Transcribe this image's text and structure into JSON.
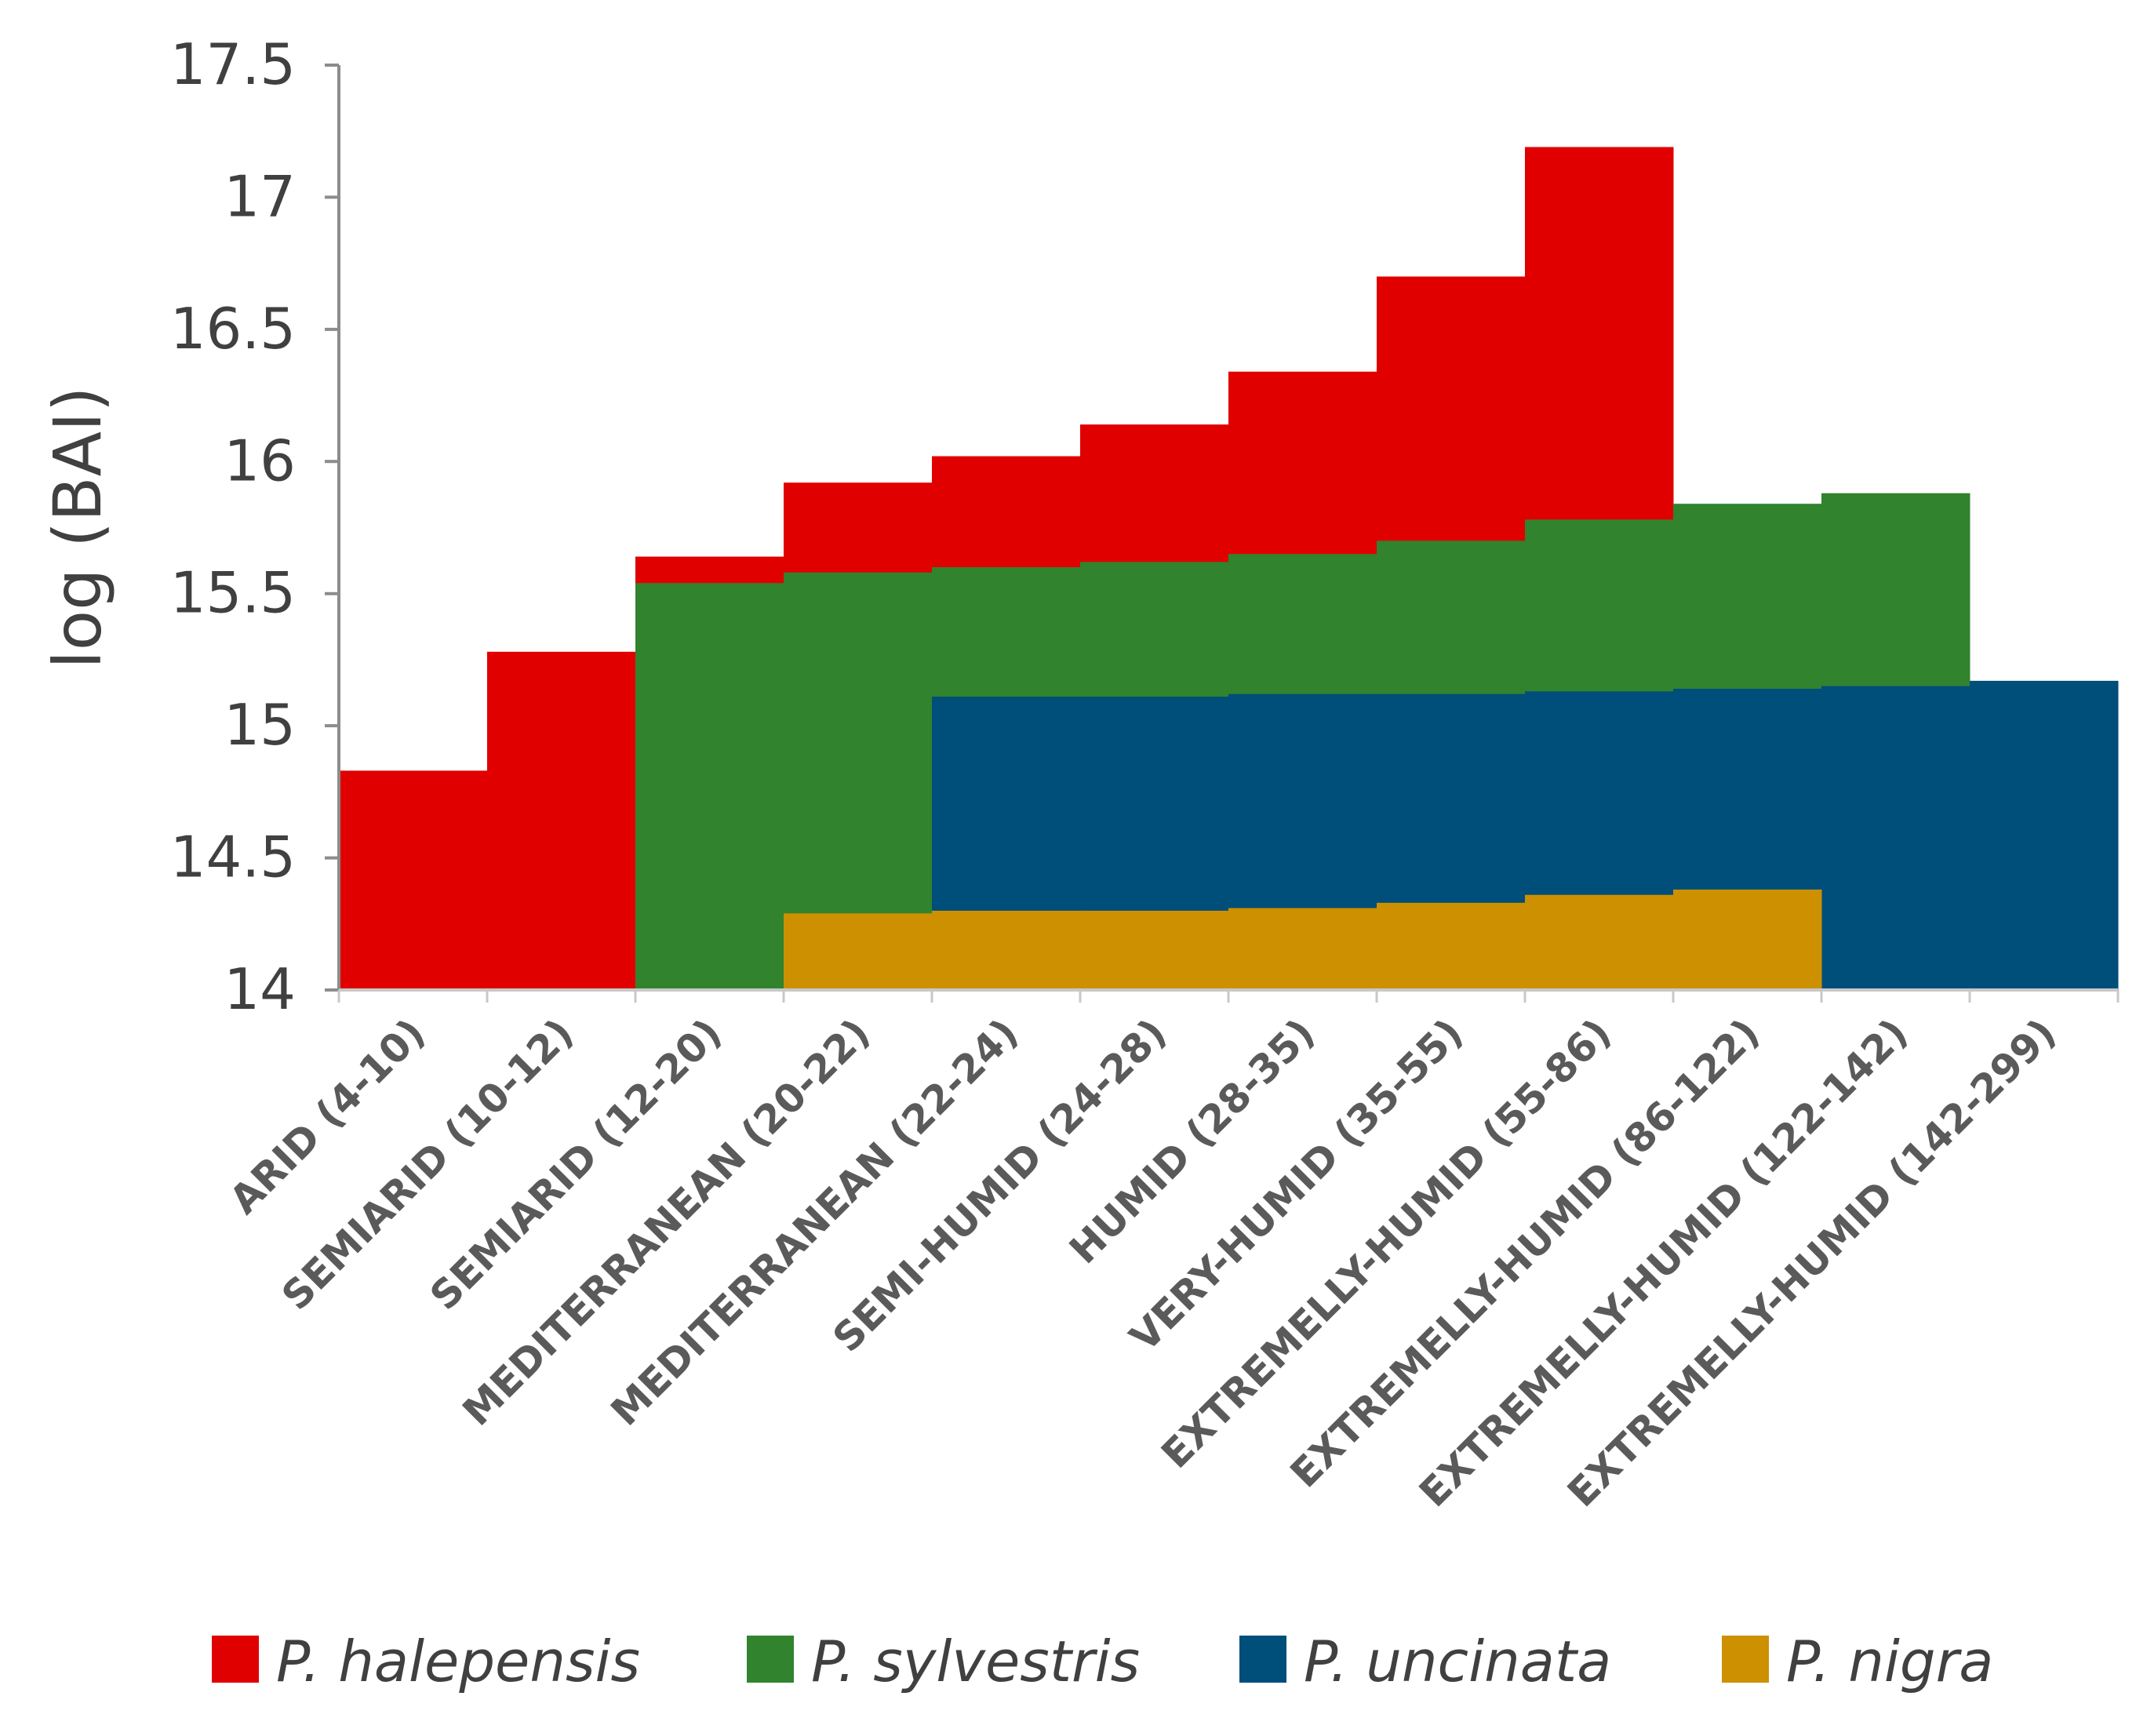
{
  "chart_data": {
    "type": "area",
    "subtype": "stepped-area",
    "title": "",
    "xlabel": "",
    "ylabel": "log (BAI)",
    "ylim": [
      14,
      17.5
    ],
    "ytick_labels": [
      "14",
      "14.5",
      "15",
      "15.5",
      "16",
      "16.5",
      "17",
      "17.5"
    ],
    "grid": false,
    "legend_position": "bottom",
    "categories": [
      "ARID (4-10)",
      "SEMIARID (10-12)",
      "SEMIARID (12-20)",
      "MEDITERRANEAN (20-22)",
      "MEDITERRANEAN (22-24)",
      "SEMI-HUMID (24-28)",
      "HUMID (28-35)",
      "VERY-HUMID (35-55)",
      "EXTREMELLY-HUMID (55-86)",
      "EXTREMELLY-HUMID (86-122)",
      "EXTREMELLY-HUMID (122-142)",
      "EXTREMELLY-HUMID (142-299)"
    ],
    "series": [
      {
        "name": "P. halepensis",
        "color": "#e00000",
        "values": [
          14.83,
          15.28,
          15.64,
          15.92,
          16.02,
          16.14,
          16.34,
          16.7,
          17.19,
          null,
          null,
          null
        ]
      },
      {
        "name": "P. sylvestris",
        "color": "#31832d",
        "values": [
          null,
          null,
          15.54,
          15.58,
          15.6,
          15.62,
          15.65,
          15.7,
          15.78,
          15.84,
          15.88,
          null
        ]
      },
      {
        "name": "P. uncinata",
        "color": "#004e7a",
        "values": [
          null,
          null,
          null,
          null,
          15.11,
          15.11,
          15.12,
          15.12,
          15.13,
          15.14,
          15.15,
          15.17
        ]
      },
      {
        "name": "P. nigra",
        "color": "#cc9000",
        "values": [
          null,
          null,
          null,
          14.29,
          14.3,
          14.3,
          14.31,
          14.33,
          14.36,
          14.38,
          null,
          null
        ]
      }
    ]
  }
}
